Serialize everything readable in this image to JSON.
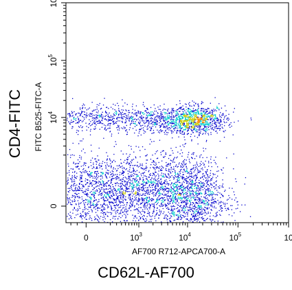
{
  "chart_data": {
    "type": "scatter",
    "subtype": "flow-cytometry-density-dot-plot",
    "title": "",
    "xlabel_outer": "CD62L-AF700",
    "ylabel_outer": "CD4-FITC",
    "xlabel": "AF700 R712-APCA700-A",
    "ylabel": "FITC B525-FITC-A",
    "x_scale": "biexponential",
    "y_scale": "biexponential",
    "x_ticks": [
      {
        "value": 0,
        "label": "0"
      },
      {
        "value": 1000,
        "label": "10",
        "exp": "3"
      },
      {
        "value": 10000,
        "label": "10",
        "exp": "4"
      },
      {
        "value": 100000,
        "label": "10",
        "exp": "5"
      },
      {
        "value": 1000000,
        "label": "10",
        "exp": ""
      }
    ],
    "y_ticks": [
      {
        "value": 0,
        "label": "0"
      },
      {
        "value": 10000,
        "label": "10",
        "exp": "4"
      },
      {
        "value": 100000,
        "label": "10",
        "exp": "5"
      },
      {
        "value": 1000000,
        "label": "10",
        "exp": ""
      }
    ],
    "colors": {
      "low": "#0000cc",
      "mid": "#00cccc",
      "high": "#cccc00",
      "peak": "#ff8800",
      "axis": "#000000"
    },
    "populations": [
      {
        "x_center": 100,
        "y_center": 200,
        "x_spread": 0.9,
        "y_spread": 0.35,
        "count": 2000
      },
      {
        "x_center": 12000,
        "y_center": 150,
        "x_spread": 0.35,
        "y_spread": 0.35,
        "count": 1200
      },
      {
        "x_center": 1500,
        "y_center": 300,
        "x_spread": 0.45,
        "y_spread": 0.3,
        "count": 600
      },
      {
        "x_center": 50,
        "y_center": 10000,
        "x_spread": 0.8,
        "y_spread": 0.12,
        "count": 600
      },
      {
        "x_center": 15000,
        "y_center": 9000,
        "x_spread": 0.3,
        "y_spread": 0.12,
        "count": 900
      },
      {
        "x_center": 2500,
        "y_center": 9000,
        "x_spread": 0.45,
        "y_spread": 0.12,
        "count": 400
      }
    ]
  }
}
